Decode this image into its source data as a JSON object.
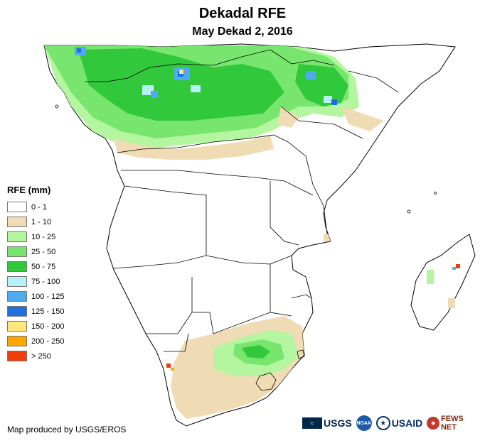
{
  "title": "Dekadal RFE",
  "subtitle": "May Dekad 2, 2016",
  "legend": {
    "title": "RFE (mm)",
    "items": [
      {
        "label": "0 - 1",
        "color": "#ffffff"
      },
      {
        "label": "1 - 10",
        "color": "#f0dcb4"
      },
      {
        "label": "10 - 25",
        "color": "#b4f5a0"
      },
      {
        "label": "25 - 50",
        "color": "#78e66e"
      },
      {
        "label": "50 - 75",
        "color": "#32c83c"
      },
      {
        "label": "75 - 100",
        "color": "#b4f0f5"
      },
      {
        "label": "100 - 125",
        "color": "#50aaf0"
      },
      {
        "label": "125 - 150",
        "color": "#1e6edc"
      },
      {
        "label": "150 - 200",
        "color": "#ffe678"
      },
      {
        "label": "200 - 250",
        "color": "#ffa500"
      },
      {
        "label": "> 250",
        "color": "#f03c0a"
      }
    ]
  },
  "credit": "Map produced by USGS/EROS",
  "logos": {
    "usgs": "USGS",
    "noaa": "NOAA",
    "usaid": "USAID",
    "fews": "FEWS NET"
  }
}
